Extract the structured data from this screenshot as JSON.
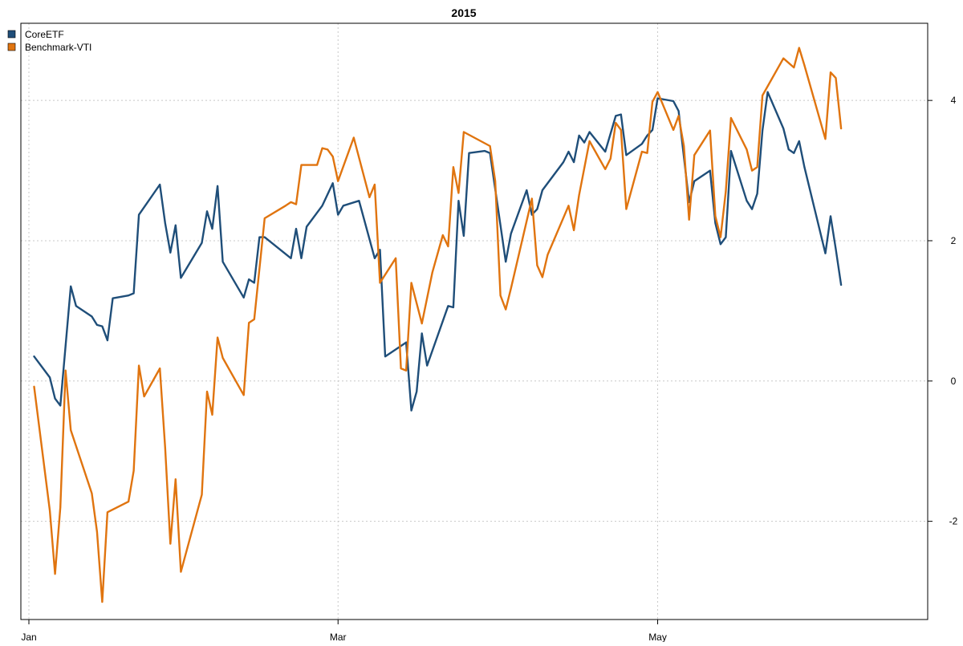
{
  "chart_data": {
    "type": "line",
    "title": "2015",
    "xlabel": "",
    "ylabel": "",
    "x_start_date": "2015-01-02",
    "x_range": [
      "2015-01-01",
      "2015-06-20"
    ],
    "ylim": [
      -3.4,
      5.1
    ],
    "x_ticks": [
      {
        "label": "Jan",
        "date": "2015-01-01"
      },
      {
        "label": "Mar",
        "date": "2015-03-01"
      },
      {
        "label": "May",
        "date": "2015-05-01"
      }
    ],
    "y_ticks": [
      -2,
      0,
      2,
      4
    ],
    "y_axis_side": "right",
    "grid": true,
    "legend_position": "top-left",
    "series": [
      {
        "name": "CoreETF",
        "color": "#1f4e79",
        "points": [
          [
            "2015-01-02",
            0.35
          ],
          [
            "2015-01-05",
            0.05
          ],
          [
            "2015-01-06",
            -0.25
          ],
          [
            "2015-01-07",
            -0.35
          ],
          [
            "2015-01-09",
            1.35
          ],
          [
            "2015-01-10",
            1.07
          ],
          [
            "2015-01-13",
            0.92
          ],
          [
            "2015-01-14",
            0.8
          ],
          [
            "2015-01-15",
            0.78
          ],
          [
            "2015-01-16",
            0.58
          ],
          [
            "2015-01-17",
            1.18
          ],
          [
            "2015-01-20",
            1.22
          ],
          [
            "2015-01-21",
            1.25
          ],
          [
            "2015-01-22",
            2.37
          ],
          [
            "2015-01-26",
            2.8
          ],
          [
            "2015-01-27",
            2.25
          ],
          [
            "2015-01-28",
            1.83
          ],
          [
            "2015-01-29",
            2.22
          ],
          [
            "2015-01-30",
            1.47
          ],
          [
            "2015-02-03",
            1.97
          ],
          [
            "2015-02-04",
            2.42
          ],
          [
            "2015-02-05",
            2.17
          ],
          [
            "2015-02-06",
            2.78
          ],
          [
            "2015-02-07",
            1.7
          ],
          [
            "2015-02-11",
            1.19
          ],
          [
            "2015-02-12",
            1.45
          ],
          [
            "2015-02-13",
            1.4
          ],
          [
            "2015-02-14",
            2.05
          ],
          [
            "2015-02-15",
            2.05
          ],
          [
            "2015-02-20",
            1.75
          ],
          [
            "2015-02-21",
            2.17
          ],
          [
            "2015-02-22",
            1.75
          ],
          [
            "2015-02-23",
            2.2
          ],
          [
            "2015-02-26",
            2.5
          ],
          [
            "2015-02-28",
            2.82
          ],
          [
            "2015-03-01",
            2.37
          ],
          [
            "2015-03-02",
            2.5
          ],
          [
            "2015-03-05",
            2.57
          ],
          [
            "2015-03-08",
            1.75
          ],
          [
            "2015-03-09",
            1.87
          ],
          [
            "2015-03-10",
            0.35
          ],
          [
            "2015-03-14",
            0.55
          ],
          [
            "2015-03-15",
            -0.42
          ],
          [
            "2015-03-16",
            -0.15
          ],
          [
            "2015-03-17",
            0.68
          ],
          [
            "2015-03-18",
            0.22
          ],
          [
            "2015-03-22",
            1.07
          ],
          [
            "2015-03-23",
            1.05
          ],
          [
            "2015-03-24",
            2.57
          ],
          [
            "2015-03-25",
            2.07
          ],
          [
            "2015-03-26",
            3.25
          ],
          [
            "2015-03-29",
            3.28
          ],
          [
            "2015-03-30",
            3.25
          ],
          [
            "2015-04-02",
            1.7
          ],
          [
            "2015-04-03",
            2.1
          ],
          [
            "2015-04-06",
            2.72
          ],
          [
            "2015-04-07",
            2.37
          ],
          [
            "2015-04-08",
            2.45
          ],
          [
            "2015-04-09",
            2.72
          ],
          [
            "2015-04-13",
            3.12
          ],
          [
            "2015-04-14",
            3.27
          ],
          [
            "2015-04-15",
            3.12
          ],
          [
            "2015-04-16",
            3.5
          ],
          [
            "2015-04-17",
            3.4
          ],
          [
            "2015-04-18",
            3.55
          ],
          [
            "2015-04-21",
            3.27
          ],
          [
            "2015-04-23",
            3.78
          ],
          [
            "2015-04-24",
            3.8
          ],
          [
            "2015-04-25",
            3.22
          ],
          [
            "2015-04-28",
            3.38
          ],
          [
            "2015-04-29",
            3.5
          ],
          [
            "2015-04-30",
            3.58
          ],
          [
            "2015-05-01",
            4.03
          ],
          [
            "2015-05-04",
            3.99
          ],
          [
            "2015-05-05",
            3.85
          ],
          [
            "2015-05-07",
            2.55
          ],
          [
            "2015-05-08",
            2.85
          ],
          [
            "2015-05-11",
            3.0
          ],
          [
            "2015-05-12",
            2.25
          ],
          [
            "2015-05-13",
            1.95
          ],
          [
            "2015-05-14",
            2.05
          ],
          [
            "2015-05-15",
            3.28
          ],
          [
            "2015-05-18",
            2.57
          ],
          [
            "2015-05-19",
            2.45
          ],
          [
            "2015-05-20",
            2.67
          ],
          [
            "2015-05-21",
            3.57
          ],
          [
            "2015-05-22",
            4.12
          ],
          [
            "2015-05-25",
            3.6
          ],
          [
            "2015-05-26",
            3.3
          ],
          [
            "2015-05-27",
            3.25
          ],
          [
            "2015-05-28",
            3.42
          ],
          [
            "2015-05-29",
            3.05
          ],
          [
            "2015-06-02",
            1.82
          ],
          [
            "2015-06-03",
            2.35
          ],
          [
            "2015-06-04",
            1.88
          ],
          [
            "2015-06-05",
            1.37
          ]
        ]
      },
      {
        "name": "Benchmark-VTI",
        "color": "#e0740f",
        "points": [
          [
            "2015-01-02",
            -0.08
          ],
          [
            "2015-01-05",
            -1.85
          ],
          [
            "2015-01-06",
            -2.75
          ],
          [
            "2015-01-07",
            -1.8
          ],
          [
            "2015-01-08",
            0.15
          ],
          [
            "2015-01-09",
            -0.7
          ],
          [
            "2015-01-13",
            -1.6
          ],
          [
            "2015-01-14",
            -2.15
          ],
          [
            "2015-01-15",
            -3.15
          ],
          [
            "2015-01-16",
            -1.87
          ],
          [
            "2015-01-20",
            -1.72
          ],
          [
            "2015-01-21",
            -1.28
          ],
          [
            "2015-01-22",
            0.22
          ],
          [
            "2015-01-23",
            -0.22
          ],
          [
            "2015-01-26",
            0.18
          ],
          [
            "2015-01-27",
            -0.95
          ],
          [
            "2015-01-28",
            -2.32
          ],
          [
            "2015-01-29",
            -1.4
          ],
          [
            "2015-01-30",
            -2.72
          ],
          [
            "2015-02-03",
            -1.62
          ],
          [
            "2015-02-04",
            -0.15
          ],
          [
            "2015-02-05",
            -0.48
          ],
          [
            "2015-02-06",
            0.62
          ],
          [
            "2015-02-07",
            0.33
          ],
          [
            "2015-02-11",
            -0.2
          ],
          [
            "2015-02-12",
            0.83
          ],
          [
            "2015-02-13",
            0.88
          ],
          [
            "2015-02-15",
            2.32
          ],
          [
            "2015-02-19",
            2.5
          ],
          [
            "2015-02-20",
            2.55
          ],
          [
            "2015-02-21",
            2.52
          ],
          [
            "2015-02-22",
            3.08
          ],
          [
            "2015-02-25",
            3.08
          ],
          [
            "2015-02-26",
            3.32
          ],
          [
            "2015-02-27",
            3.3
          ],
          [
            "2015-02-28",
            3.2
          ],
          [
            "2015-03-01",
            2.85
          ],
          [
            "2015-03-04",
            3.47
          ],
          [
            "2015-03-07",
            2.62
          ],
          [
            "2015-03-08",
            2.8
          ],
          [
            "2015-03-09",
            1.4
          ],
          [
            "2015-03-12",
            1.75
          ],
          [
            "2015-03-13",
            0.18
          ],
          [
            "2015-03-14",
            0.15
          ],
          [
            "2015-03-15",
            1.4
          ],
          [
            "2015-03-17",
            0.82
          ],
          [
            "2015-03-19",
            1.55
          ],
          [
            "2015-03-21",
            2.08
          ],
          [
            "2015-03-22",
            1.92
          ],
          [
            "2015-03-23",
            3.05
          ],
          [
            "2015-03-24",
            2.68
          ],
          [
            "2015-03-25",
            3.55
          ],
          [
            "2015-03-30",
            3.35
          ],
          [
            "2015-03-31",
            2.85
          ],
          [
            "2015-04-01",
            1.22
          ],
          [
            "2015-04-02",
            1.02
          ],
          [
            "2015-04-03",
            1.32
          ],
          [
            "2015-04-07",
            2.6
          ],
          [
            "2015-04-08",
            1.65
          ],
          [
            "2015-04-09",
            1.48
          ],
          [
            "2015-04-10",
            1.8
          ],
          [
            "2015-04-14",
            2.5
          ],
          [
            "2015-04-15",
            2.15
          ],
          [
            "2015-04-16",
            2.65
          ],
          [
            "2015-04-18",
            3.42
          ],
          [
            "2015-04-21",
            3.02
          ],
          [
            "2015-04-22",
            3.17
          ],
          [
            "2015-04-23",
            3.68
          ],
          [
            "2015-04-24",
            3.58
          ],
          [
            "2015-04-25",
            2.45
          ],
          [
            "2015-04-28",
            3.27
          ],
          [
            "2015-04-29",
            3.25
          ],
          [
            "2015-04-30",
            3.98
          ],
          [
            "2015-05-01",
            4.12
          ],
          [
            "2015-05-04",
            3.58
          ],
          [
            "2015-05-05",
            3.78
          ],
          [
            "2015-05-06",
            3.35
          ],
          [
            "2015-05-07",
            2.3
          ],
          [
            "2015-05-08",
            3.22
          ],
          [
            "2015-05-11",
            3.57
          ],
          [
            "2015-05-12",
            2.35
          ],
          [
            "2015-05-13",
            2.05
          ],
          [
            "2015-05-14",
            2.7
          ],
          [
            "2015-05-15",
            3.75
          ],
          [
            "2015-05-18",
            3.3
          ],
          [
            "2015-05-19",
            3.0
          ],
          [
            "2015-05-20",
            3.05
          ],
          [
            "2015-05-21",
            4.07
          ],
          [
            "2015-05-25",
            4.6
          ],
          [
            "2015-05-27",
            4.47
          ],
          [
            "2015-05-28",
            4.75
          ],
          [
            "2015-05-29",
            4.5
          ],
          [
            "2015-06-02",
            3.45
          ],
          [
            "2015-06-03",
            4.4
          ],
          [
            "2015-06-04",
            4.32
          ],
          [
            "2015-06-05",
            3.6
          ]
        ]
      }
    ]
  }
}
